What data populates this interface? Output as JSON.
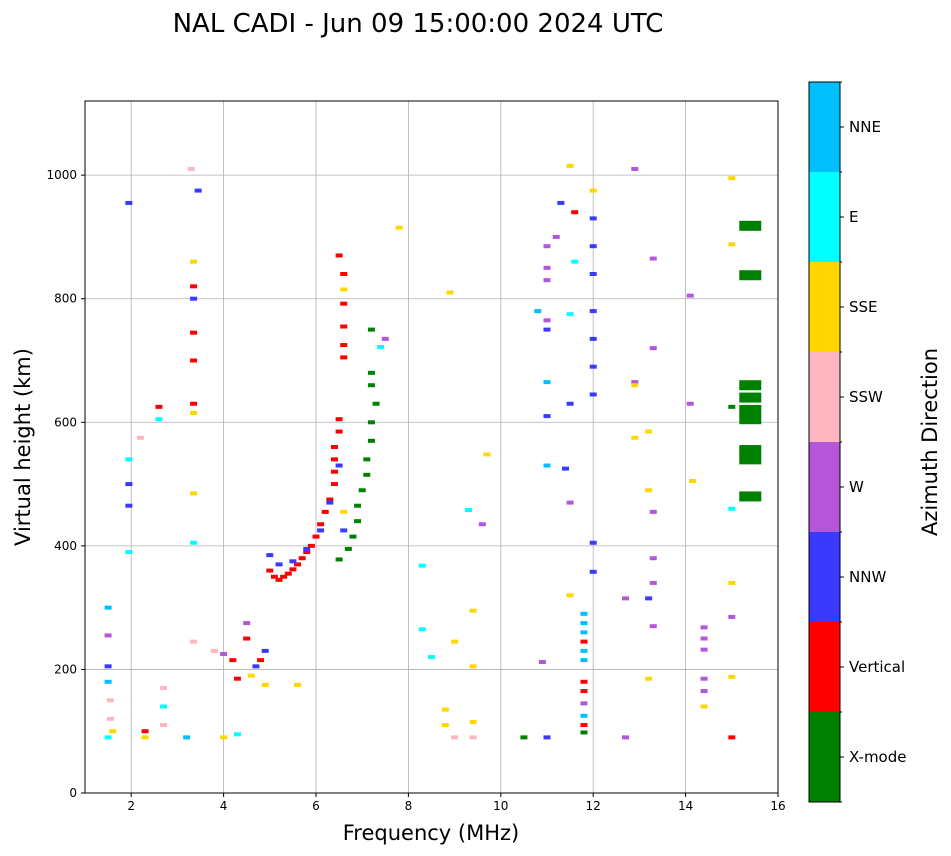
{
  "chart_data": {
    "type": "scatter",
    "title": "NAL CADI - Jun 09 15:00:00 2024 UTC",
    "xlabel": "Frequency (MHz)",
    "ylabel": "Virtual height (km)",
    "xlim": [
      1,
      16
    ],
    "ylim": [
      0,
      1120
    ],
    "xticks": [
      2,
      4,
      6,
      8,
      10,
      12,
      14,
      16
    ],
    "yticks": [
      0,
      200,
      400,
      600,
      800,
      1000
    ],
    "grid": true,
    "colorbar": {
      "label": "Azimuth Direction",
      "categories": [
        {
          "name": "X-mode",
          "color": "#008000"
        },
        {
          "name": "Vertical",
          "color": "#ff0000"
        },
        {
          "name": "NNW",
          "color": "#3a3aff"
        },
        {
          "name": "W",
          "color": "#b556d8"
        },
        {
          "name": "SSW",
          "color": "#ffb6c1"
        },
        {
          "name": "SSE",
          "color": "#ffd700"
        },
        {
          "name": "E",
          "color": "#00ffff"
        },
        {
          "name": "NNE",
          "color": "#00bfff"
        }
      ]
    },
    "points": [
      {
        "f": 6.5,
        "h": 870,
        "c": "Vertical"
      },
      {
        "f": 6.6,
        "h": 840,
        "c": "Vertical"
      },
      {
        "f": 6.6,
        "h": 815,
        "c": "SSE"
      },
      {
        "f": 6.6,
        "h": 792,
        "c": "Vertical"
      },
      {
        "f": 6.6,
        "h": 755,
        "c": "Vertical"
      },
      {
        "f": 6.6,
        "h": 725,
        "c": "Vertical"
      },
      {
        "f": 6.6,
        "h": 705,
        "c": "Vertical"
      },
      {
        "f": 6.5,
        "h": 605,
        "c": "Vertical"
      },
      {
        "f": 6.5,
        "h": 585,
        "c": "Vertical"
      },
      {
        "f": 6.4,
        "h": 560,
        "c": "Vertical"
      },
      {
        "f": 6.4,
        "h": 540,
        "c": "Vertical"
      },
      {
        "f": 6.4,
        "h": 520,
        "c": "Vertical"
      },
      {
        "f": 6.4,
        "h": 500,
        "c": "Vertical"
      },
      {
        "f": 6.3,
        "h": 475,
        "c": "Vertical"
      },
      {
        "f": 6.2,
        "h": 455,
        "c": "Vertical"
      },
      {
        "f": 6.1,
        "h": 435,
        "c": "Vertical"
      },
      {
        "f": 6.0,
        "h": 415,
        "c": "Vertical"
      },
      {
        "f": 5.9,
        "h": 400,
        "c": "Vertical"
      },
      {
        "f": 5.8,
        "h": 390,
        "c": "Vertical"
      },
      {
        "f": 5.7,
        "h": 380,
        "c": "Vertical"
      },
      {
        "f": 5.6,
        "h": 370,
        "c": "Vertical"
      },
      {
        "f": 5.5,
        "h": 362,
        "c": "Vertical"
      },
      {
        "f": 5.4,
        "h": 355,
        "c": "Vertical"
      },
      {
        "f": 5.3,
        "h": 350,
        "c": "Vertical"
      },
      {
        "f": 5.2,
        "h": 345,
        "c": "Vertical"
      },
      {
        "f": 5.1,
        "h": 350,
        "c": "Vertical"
      },
      {
        "f": 5.0,
        "h": 360,
        "c": "Vertical"
      },
      {
        "f": 5.0,
        "h": 385,
        "c": "NNW"
      },
      {
        "f": 5.2,
        "h": 370,
        "c": "NNW"
      },
      {
        "f": 5.5,
        "h": 375,
        "c": "NNW"
      },
      {
        "f": 5.8,
        "h": 395,
        "c": "NNW"
      },
      {
        "f": 6.1,
        "h": 425,
        "c": "NNW"
      },
      {
        "f": 6.3,
        "h": 470,
        "c": "NNW"
      },
      {
        "f": 6.5,
        "h": 530,
        "c": "NNW"
      },
      {
        "f": 6.6,
        "h": 455,
        "c": "SSE"
      },
      {
        "f": 6.6,
        "h": 425,
        "c": "NNW"
      },
      {
        "f": 7.2,
        "h": 750,
        "c": "X-mode"
      },
      {
        "f": 7.2,
        "h": 680,
        "c": "X-mode"
      },
      {
        "f": 7.2,
        "h": 660,
        "c": "X-mode"
      },
      {
        "f": 7.3,
        "h": 630,
        "c": "X-mode"
      },
      {
        "f": 7.2,
        "h": 600,
        "c": "X-mode"
      },
      {
        "f": 7.2,
        "h": 570,
        "c": "X-mode"
      },
      {
        "f": 7.1,
        "h": 540,
        "c": "X-mode"
      },
      {
        "f": 7.1,
        "h": 515,
        "c": "X-mode"
      },
      {
        "f": 7.0,
        "h": 490,
        "c": "X-mode"
      },
      {
        "f": 6.9,
        "h": 465,
        "c": "X-mode"
      },
      {
        "f": 6.9,
        "h": 440,
        "c": "X-mode"
      },
      {
        "f": 6.8,
        "h": 415,
        "c": "X-mode"
      },
      {
        "f": 6.7,
        "h": 395,
        "c": "X-mode"
      },
      {
        "f": 6.5,
        "h": 378,
        "c": "X-mode"
      },
      {
        "f": 4.9,
        "h": 230,
        "c": "NNW"
      },
      {
        "f": 4.8,
        "h": 215,
        "c": "Vertical"
      },
      {
        "f": 4.7,
        "h": 205,
        "c": "NNW"
      },
      {
        "f": 4.5,
        "h": 250,
        "c": "Vertical"
      },
      {
        "f": 4.5,
        "h": 275,
        "c": "W"
      },
      {
        "f": 4.2,
        "h": 215,
        "c": "Vertical"
      },
      {
        "f": 4.0,
        "h": 225,
        "c": "W"
      },
      {
        "f": 3.8,
        "h": 230,
        "c": "SSW"
      },
      {
        "f": 4.3,
        "h": 185,
        "c": "Vertical"
      },
      {
        "f": 4.6,
        "h": 190,
        "c": "SSE"
      },
      {
        "f": 4.9,
        "h": 175,
        "c": "SSE"
      },
      {
        "f": 5.6,
        "h": 175,
        "c": "SSE"
      },
      {
        "f": 3.35,
        "h": 860,
        "c": "SSE"
      },
      {
        "f": 3.35,
        "h": 820,
        "c": "Vertical"
      },
      {
        "f": 3.35,
        "h": 800,
        "c": "NNW"
      },
      {
        "f": 3.35,
        "h": 745,
        "c": "Vertical"
      },
      {
        "f": 3.35,
        "h": 700,
        "c": "Vertical"
      },
      {
        "f": 3.35,
        "h": 630,
        "c": "Vertical"
      },
      {
        "f": 3.35,
        "h": 615,
        "c": "SSE"
      },
      {
        "f": 3.35,
        "h": 485,
        "c": "SSE"
      },
      {
        "f": 3.35,
        "h": 405,
        "c": "E"
      },
      {
        "f": 3.35,
        "h": 245,
        "c": "SSW"
      },
      {
        "f": 3.3,
        "h": 1010,
        "c": "SSW"
      },
      {
        "f": 3.45,
        "h": 975,
        "c": "NNW"
      },
      {
        "f": 1.95,
        "h": 955,
        "c": "NNW"
      },
      {
        "f": 2.6,
        "h": 625,
        "c": "Vertical"
      },
      {
        "f": 2.6,
        "h": 605,
        "c": "E"
      },
      {
        "f": 2.2,
        "h": 575,
        "c": "SSW"
      },
      {
        "f": 1.95,
        "h": 540,
        "c": "E"
      },
      {
        "f": 1.95,
        "h": 500,
        "c": "NNW"
      },
      {
        "f": 1.95,
        "h": 465,
        "c": "NNW"
      },
      {
        "f": 1.95,
        "h": 390,
        "c": "E"
      },
      {
        "f": 1.5,
        "h": 300,
        "c": "NNE"
      },
      {
        "f": 1.5,
        "h": 255,
        "c": "W"
      },
      {
        "f": 1.5,
        "h": 205,
        "c": "NNW"
      },
      {
        "f": 1.5,
        "h": 180,
        "c": "NNE"
      },
      {
        "f": 1.55,
        "h": 150,
        "c": "SSW"
      },
      {
        "f": 1.55,
        "h": 120,
        "c": "SSW"
      },
      {
        "f": 1.6,
        "h": 100,
        "c": "SSE"
      },
      {
        "f": 1.5,
        "h": 90,
        "c": "E"
      },
      {
        "f": 2.3,
        "h": 100,
        "c": "Vertical"
      },
      {
        "f": 2.3,
        "h": 90,
        "c": "SSE"
      },
      {
        "f": 2.7,
        "h": 170,
        "c": "SSW"
      },
      {
        "f": 2.7,
        "h": 140,
        "c": "E"
      },
      {
        "f": 2.7,
        "h": 110,
        "c": "SSW"
      },
      {
        "f": 3.2,
        "h": 90,
        "c": "NNE"
      },
      {
        "f": 4.3,
        "h": 95,
        "c": "E"
      },
      {
        "f": 4.0,
        "h": 90,
        "c": "SSE"
      },
      {
        "f": 11.8,
        "h": 290,
        "c": "NNE"
      },
      {
        "f": 11.8,
        "h": 275,
        "c": "NNE"
      },
      {
        "f": 11.8,
        "h": 260,
        "c": "NNE"
      },
      {
        "f": 11.8,
        "h": 245,
        "c": "Vertical"
      },
      {
        "f": 11.8,
        "h": 230,
        "c": "NNE"
      },
      {
        "f": 11.8,
        "h": 215,
        "c": "NNE"
      },
      {
        "f": 11.8,
        "h": 180,
        "c": "Vertical"
      },
      {
        "f": 11.8,
        "h": 165,
        "c": "Vertical"
      },
      {
        "f": 11.8,
        "h": 145,
        "c": "W"
      },
      {
        "f": 11.8,
        "h": 125,
        "c": "NNE"
      },
      {
        "f": 11.8,
        "h": 110,
        "c": "Vertical"
      },
      {
        "f": 11.8,
        "h": 98,
        "c": "X-mode"
      },
      {
        "f": 12.0,
        "h": 975,
        "c": "SSE"
      },
      {
        "f": 12.0,
        "h": 930,
        "c": "NNW"
      },
      {
        "f": 12.0,
        "h": 885,
        "c": "NNW"
      },
      {
        "f": 12.0,
        "h": 840,
        "c": "NNW"
      },
      {
        "f": 12.0,
        "h": 780,
        "c": "NNW"
      },
      {
        "f": 12.0,
        "h": 735,
        "c": "NNW"
      },
      {
        "f": 12.0,
        "h": 690,
        "c": "NNW"
      },
      {
        "f": 12.0,
        "h": 645,
        "c": "NNW"
      },
      {
        "f": 12.0,
        "h": 405,
        "c": "NNW"
      },
      {
        "f": 12.0,
        "h": 358,
        "c": "NNW"
      },
      {
        "f": 11.0,
        "h": 665,
        "c": "NNE"
      },
      {
        "f": 11.0,
        "h": 530,
        "c": "NNE"
      },
      {
        "f": 11.4,
        "h": 525,
        "c": "NNW"
      },
      {
        "f": 11.5,
        "h": 775,
        "c": "E"
      },
      {
        "f": 11.6,
        "h": 860,
        "c": "E"
      },
      {
        "f": 10.8,
        "h": 780,
        "c": "NNE"
      },
      {
        "f": 11.5,
        "h": 320,
        "c": "SSE"
      },
      {
        "f": 12.9,
        "h": 1010,
        "c": "W"
      },
      {
        "f": 13.3,
        "h": 865,
        "c": "W"
      },
      {
        "f": 13.3,
        "h": 720,
        "c": "W"
      },
      {
        "f": 12.9,
        "h": 665,
        "c": "W"
      },
      {
        "f": 12.9,
        "h": 660,
        "c": "SSE"
      },
      {
        "f": 13.2,
        "h": 585,
        "c": "SSE"
      },
      {
        "f": 12.9,
        "h": 575,
        "c": "SSE"
      },
      {
        "f": 13.2,
        "h": 490,
        "c": "SSE"
      },
      {
        "f": 13.3,
        "h": 455,
        "c": "W"
      },
      {
        "f": 13.3,
        "h": 380,
        "c": "W"
      },
      {
        "f": 13.3,
        "h": 340,
        "c": "W"
      },
      {
        "f": 13.2,
        "h": 315,
        "c": "NNW"
      },
      {
        "f": 12.7,
        "h": 315,
        "c": "W"
      },
      {
        "f": 13.3,
        "h": 270,
        "c": "W"
      },
      {
        "f": 13.2,
        "h": 185,
        "c": "SSE"
      },
      {
        "f": 14.1,
        "h": 805,
        "c": "W"
      },
      {
        "f": 14.1,
        "h": 630,
        "c": "W"
      },
      {
        "f": 14.15,
        "h": 505,
        "c": "SSE"
      },
      {
        "f": 14.4,
        "h": 268,
        "c": "W"
      },
      {
        "f": 14.4,
        "h": 250,
        "c": "W"
      },
      {
        "f": 14.4,
        "h": 232,
        "c": "W"
      },
      {
        "f": 14.4,
        "h": 185,
        "c": "W"
      },
      {
        "f": 14.4,
        "h": 165,
        "c": "W"
      },
      {
        "f": 14.4,
        "h": 140,
        "c": "SSE"
      },
      {
        "f": 15.0,
        "h": 995,
        "c": "SSE"
      },
      {
        "f": 15.0,
        "h": 888,
        "c": "SSE"
      },
      {
        "f": 15.0,
        "h": 460,
        "c": "E"
      },
      {
        "f": 15.0,
        "h": 340,
        "c": "SSE"
      },
      {
        "f": 15.0,
        "h": 285,
        "c": "W"
      },
      {
        "f": 15.0,
        "h": 188,
        "c": "SSE"
      },
      {
        "f": 15.0,
        "h": 90,
        "c": "Vertical"
      },
      {
        "f": 15.0,
        "h": 625,
        "c": "X-mode"
      },
      {
        "f": 15.4,
        "h": 918,
        "c": "X-mode"
      },
      {
        "f": 15.4,
        "h": 838,
        "c": "X-mode"
      },
      {
        "f": 15.4,
        "h": 660,
        "c": "X-mode"
      },
      {
        "f": 15.4,
        "h": 640,
        "c": "X-mode"
      },
      {
        "f": 15.4,
        "h": 620,
        "c": "X-mode"
      },
      {
        "f": 15.4,
        "h": 605,
        "c": "X-mode"
      },
      {
        "f": 15.4,
        "h": 555,
        "c": "X-mode"
      },
      {
        "f": 15.4,
        "h": 540,
        "c": "X-mode"
      },
      {
        "f": 15.4,
        "h": 480,
        "c": "X-mode"
      },
      {
        "f": 8.3,
        "h": 265,
        "c": "E"
      },
      {
        "f": 8.5,
        "h": 220,
        "c": "E"
      },
      {
        "f": 8.3,
        "h": 368,
        "c": "E"
      },
      {
        "f": 8.8,
        "h": 135,
        "c": "SSE"
      },
      {
        "f": 8.8,
        "h": 110,
        "c": "SSE"
      },
      {
        "f": 9.0,
        "h": 245,
        "c": "SSE"
      },
      {
        "f": 9.4,
        "h": 295,
        "c": "SSE"
      },
      {
        "f": 9.4,
        "h": 205,
        "c": "SSE"
      },
      {
        "f": 9.4,
        "h": 115,
        "c": "SSE"
      },
      {
        "f": 9.3,
        "h": 458,
        "c": "E"
      },
      {
        "f": 9.6,
        "h": 435,
        "c": "W"
      },
      {
        "f": 9.7,
        "h": 548,
        "c": "SSE"
      },
      {
        "f": 9.0,
        "h": 90,
        "c": "SSW"
      },
      {
        "f": 9.4,
        "h": 90,
        "c": "SSW"
      },
      {
        "f": 10.5,
        "h": 90,
        "c": "X-mode"
      },
      {
        "f": 11.0,
        "h": 90,
        "c": "NNW"
      },
      {
        "f": 10.9,
        "h": 212,
        "c": "W"
      },
      {
        "f": 12.7,
        "h": 90,
        "c": "W"
      },
      {
        "f": 8.9,
        "h": 810,
        "c": "SSE"
      },
      {
        "f": 7.8,
        "h": 915,
        "c": "SSE"
      },
      {
        "f": 7.5,
        "h": 735,
        "c": "W"
      },
      {
        "f": 7.4,
        "h": 722,
        "c": "E"
      },
      {
        "f": 11.0,
        "h": 885,
        "c": "W"
      },
      {
        "f": 11.0,
        "h": 850,
        "c": "W"
      },
      {
        "f": 11.0,
        "h": 830,
        "c": "W"
      },
      {
        "f": 11.0,
        "h": 765,
        "c": "W"
      },
      {
        "f": 11.0,
        "h": 750,
        "c": "NNW"
      },
      {
        "f": 11.0,
        "h": 610,
        "c": "NNW"
      },
      {
        "f": 11.5,
        "h": 630,
        "c": "NNW"
      },
      {
        "f": 11.5,
        "h": 470,
        "c": "W"
      },
      {
        "f": 11.2,
        "h": 900,
        "c": "W"
      },
      {
        "f": 11.3,
        "h": 955,
        "c": "NNW"
      },
      {
        "f": 11.5,
        "h": 1015,
        "c": "SSE"
      },
      {
        "f": 11.6,
        "h": 940,
        "c": "Vertical"
      }
    ]
  }
}
